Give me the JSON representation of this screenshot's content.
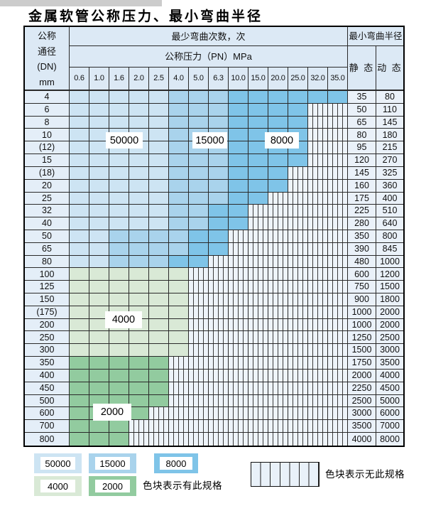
{
  "page": {
    "title": "金属软管公称压力、最小弯曲半径"
  },
  "colors": {
    "c1": "#cde4f3",
    "c2": "#a9d3ec",
    "c3": "#7fc4e8",
    "c4": "#d9e9d6",
    "c5": "#92cb9f",
    "c0": "#eef4fa",
    "hfill": "#dce9f5",
    "lfill": "#e4eef8",
    "vfill": "#eaf1f9"
  },
  "table": {
    "corner_lines": [
      "公称",
      "通径",
      "(DN)",
      "mm"
    ],
    "cycles_header": "最少弯曲次数，次",
    "pressure_header": "公称压力（PN）MPa",
    "pressures": [
      "0.6",
      "1.0",
      "1.6",
      "2.0",
      "2.5",
      "4.0",
      "5.0",
      "6.3",
      "10.0",
      "15.0",
      "20.0",
      "25.0",
      "32.0",
      "35.0"
    ],
    "radius_header": "最小弯曲半径",
    "static_header": "静 态",
    "dynamic_header": "动 态",
    "shade_key": {
      "1": "50000",
      "2": "15000",
      "3": "8000",
      "4": "4000",
      "5": "2000",
      "0": "无此规格"
    },
    "rows": [
      {
        "dn": "4",
        "static": "35",
        "dynamic": "80",
        "shades": "11111222333333"
      },
      {
        "dn": "6",
        "static": "50",
        "dynamic": "110",
        "shades": "11111222333300"
      },
      {
        "dn": "8",
        "static": "65",
        "dynamic": "145",
        "shades": "11111222333300"
      },
      {
        "dn": "10",
        "static": "80",
        "dynamic": "180",
        "shades": "11111222333300"
      },
      {
        "dn": "(12)",
        "static": "95",
        "dynamic": "215",
        "shades": "11111222333300"
      },
      {
        "dn": "15",
        "static": "120",
        "dynamic": "270",
        "shades": "11111222333300"
      },
      {
        "dn": "(18)",
        "static": "145",
        "dynamic": "325",
        "shades": "11111222333000"
      },
      {
        "dn": "20",
        "static": "160",
        "dynamic": "360",
        "shades": "11111222333000"
      },
      {
        "dn": "25",
        "static": "175",
        "dynamic": "400",
        "shades": "11111222330000"
      },
      {
        "dn": "32",
        "static": "225",
        "dynamic": "510",
        "shades": "11111223300000"
      },
      {
        "dn": "40",
        "static": "280",
        "dynamic": "640",
        "shades": "11111223300000"
      },
      {
        "dn": "50",
        "static": "350",
        "dynamic": "800",
        "shades": "11222233000000"
      },
      {
        "dn": "65",
        "static": "390",
        "dynamic": "845",
        "shades": "11222233000000"
      },
      {
        "dn": "80",
        "static": "480",
        "dynamic": "1000",
        "shades": "11222330000000"
      },
      {
        "dn": "100",
        "static": "600",
        "dynamic": "1200",
        "shades": "44444400000000"
      },
      {
        "dn": "125",
        "static": "750",
        "dynamic": "1500",
        "shades": "44444400000000"
      },
      {
        "dn": "150",
        "static": "900",
        "dynamic": "1800",
        "shades": "44444400000000"
      },
      {
        "dn": "(175)",
        "static": "1000",
        "dynamic": "2000",
        "shades": "44444400000000"
      },
      {
        "dn": "200",
        "static": "1000",
        "dynamic": "2000",
        "shades": "44444400000000"
      },
      {
        "dn": "250",
        "static": "1250",
        "dynamic": "2500",
        "shades": "44444400000000"
      },
      {
        "dn": "300",
        "static": "1500",
        "dynamic": "3000",
        "shades": "44444400000000"
      },
      {
        "dn": "350",
        "static": "1750",
        "dynamic": "3500",
        "shades": "55555000000000"
      },
      {
        "dn": "400",
        "static": "2000",
        "dynamic": "4000",
        "shades": "55555000000000"
      },
      {
        "dn": "450",
        "static": "2250",
        "dynamic": "4500",
        "shades": "55555000000000"
      },
      {
        "dn": "500",
        "static": "2500",
        "dynamic": "5000",
        "shades": "55555000000000"
      },
      {
        "dn": "600",
        "static": "3000",
        "dynamic": "6000",
        "shades": "55550000000000"
      },
      {
        "dn": "700",
        "static": "3500",
        "dynamic": "7000",
        "shades": "55500000000000"
      },
      {
        "dn": "800",
        "static": "4000",
        "dynamic": "8000",
        "shades": "55500000000000"
      }
    ],
    "overlays": [
      "50000",
      "15000",
      "8000",
      "4000",
      "2000"
    ]
  },
  "legend": {
    "blue": [
      {
        "label": "50000"
      },
      {
        "label": "15000"
      },
      {
        "label": "8000"
      }
    ],
    "green": [
      {
        "label": "4000"
      },
      {
        "label": "2000"
      }
    ],
    "has_spec": "色块表示有此规格",
    "no_spec": "色块表示无此规格"
  }
}
